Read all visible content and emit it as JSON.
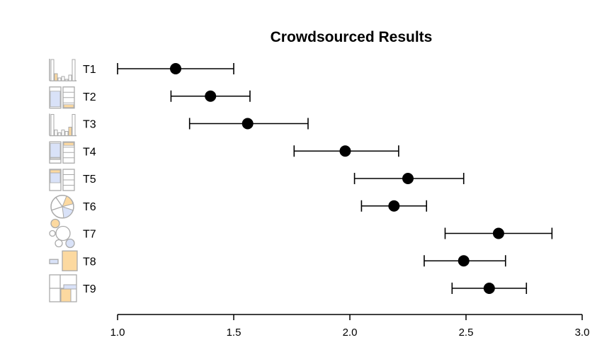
{
  "chart_data": {
    "type": "scatter",
    "title": "Crowdsourced Results",
    "xlabel": "",
    "ylabel": "",
    "xlim": [
      1.0,
      3.0
    ],
    "x_ticks": [
      "1.0",
      "1.5",
      "2.0",
      "2.5",
      "3.0"
    ],
    "rows": [
      {
        "label": "T1",
        "icon": "bar-chart-icon",
        "mean": 1.25,
        "low": 1.0,
        "high": 1.5
      },
      {
        "label": "T2",
        "icon": "stacked-bar-icon",
        "mean": 1.4,
        "low": 1.23,
        "high": 1.57
      },
      {
        "label": "T3",
        "icon": "bar-chart-icon",
        "mean": 1.56,
        "low": 1.31,
        "high": 1.82
      },
      {
        "label": "T4",
        "icon": "stacked-bar-icon",
        "mean": 1.98,
        "low": 1.76,
        "high": 2.21
      },
      {
        "label": "T5",
        "icon": "stacked-bar-icon",
        "mean": 2.25,
        "low": 2.02,
        "high": 2.49
      },
      {
        "label": "T6",
        "icon": "pie-chart-icon",
        "mean": 2.19,
        "low": 2.05,
        "high": 2.33
      },
      {
        "label": "T7",
        "icon": "bubble-chart-icon",
        "mean": 2.64,
        "low": 2.41,
        "high": 2.87
      },
      {
        "label": "T8",
        "icon": "area-comparison-icon",
        "mean": 2.49,
        "low": 2.32,
        "high": 2.67
      },
      {
        "label": "T9",
        "icon": "treemap-icon",
        "mean": 2.6,
        "low": 2.44,
        "high": 2.76
      }
    ],
    "grid": false,
    "legend": "none"
  },
  "colors": {
    "marker": "#000000",
    "icon_stroke": "#aaaaaa",
    "icon_orange": "#fcd9a0",
    "icon_blue": "#d9e2f8"
  }
}
